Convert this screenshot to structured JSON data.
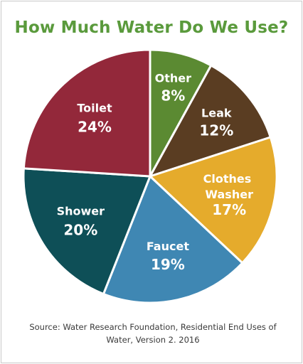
{
  "chart_data": {
    "type": "pie",
    "title": "How Much Water Do We Use?",
    "slices": [
      {
        "label": "Other",
        "value": 8,
        "display": "8%",
        "color": "#5b8a32"
      },
      {
        "label": "Leak",
        "value": 12,
        "display": "12%",
        "color": "#5a3d22"
      },
      {
        "label": "Clothes Washer",
        "value": 17,
        "display": "17%",
        "color": "#e5ab2c"
      },
      {
        "label": "Faucet",
        "value": 19,
        "display": "19%",
        "color": "#3f87b3"
      },
      {
        "label": "Shower",
        "value": 20,
        "display": "20%",
        "color": "#0e4f57"
      },
      {
        "label": "Toilet",
        "value": 24,
        "display": "24%",
        "color": "#93283a"
      }
    ],
    "source": "Source: Water Research Foundation, Residential End  Uses of Water, Version 2. 2016"
  }
}
